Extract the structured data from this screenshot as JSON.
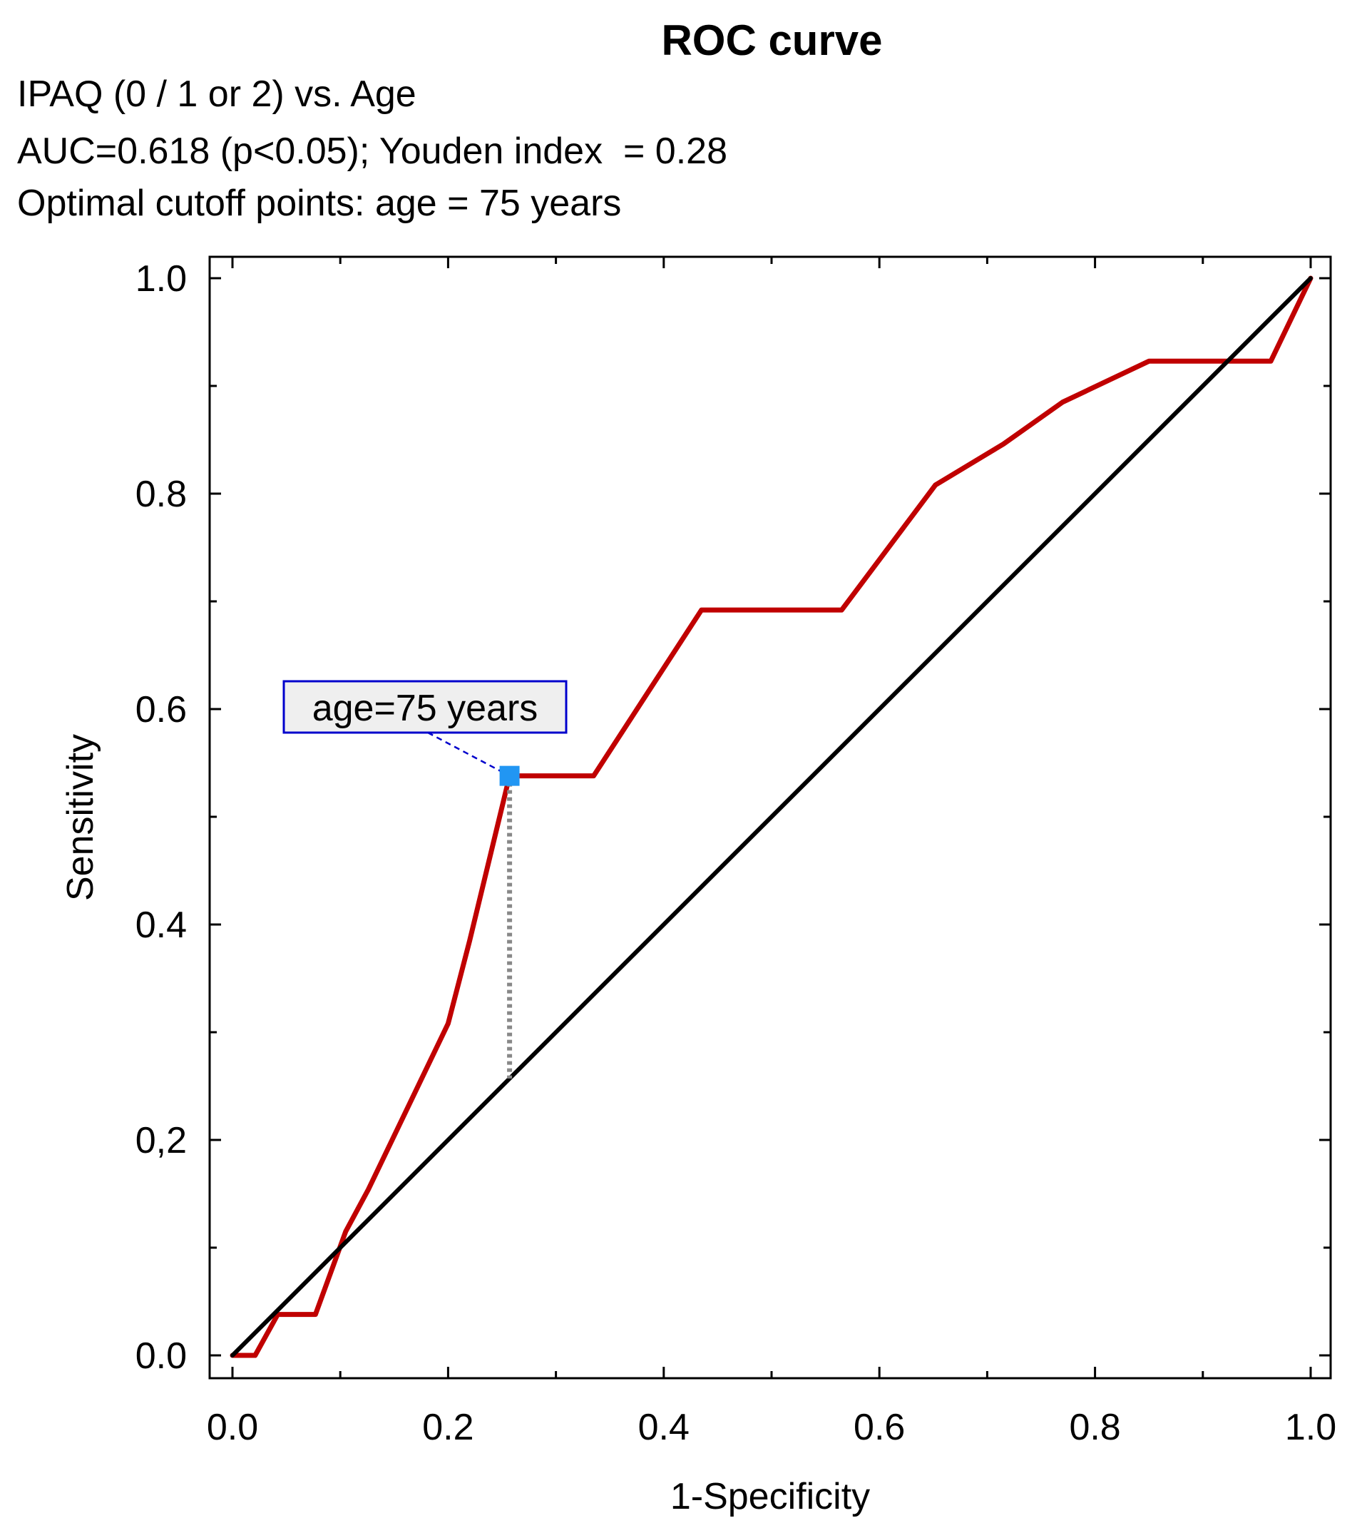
{
  "chart_data": {
    "type": "line",
    "title": "ROC curve",
    "subtitles": [
      "IPAQ (0 / 1 or 2) vs. Age",
      "AUC=0.618 (p<0.05); Youden index  = 0.28",
      "Optimal cutoff points: age = 75 years"
    ],
    "xlabel": "1-Specificity",
    "ylabel": "Sensitivity",
    "xlim": [
      0,
      1
    ],
    "ylim": [
      0,
      1
    ],
    "x_ticks": [
      {
        "value": 0.0,
        "label": "0.0"
      },
      {
        "value": 0.2,
        "label": "0.2"
      },
      {
        "value": 0.4,
        "label": "0.4"
      },
      {
        "value": 0.6,
        "label": "0.6"
      },
      {
        "value": 0.8,
        "label": "0.8"
      },
      {
        "value": 1.0,
        "label": "1.0"
      }
    ],
    "y_ticks": [
      {
        "value": 0.0,
        "label": "0.0"
      },
      {
        "value": 0.2,
        "label": "0,2"
      },
      {
        "value": 0.4,
        "label": "0.4"
      },
      {
        "value": 0.6,
        "label": "0.6"
      },
      {
        "value": 0.8,
        "label": "0.8"
      },
      {
        "value": 1.0,
        "label": "1.0"
      }
    ],
    "grid": false,
    "series": [
      {
        "color": "#c00000",
        "x": [
          0.0,
          0.021,
          0.042,
          0.077,
          0.105,
          0.126,
          0.2,
          0.22,
          0.257,
          0.335,
          0.435,
          0.565,
          0.652,
          0.715,
          0.77,
          0.85,
          0.963,
          1.0
        ],
        "y": [
          0.0,
          0.0,
          0.038,
          0.038,
          0.115,
          0.154,
          0.308,
          0.385,
          0.538,
          0.538,
          0.692,
          0.692,
          0.808,
          0.846,
          0.885,
          0.923,
          0.923,
          1.0
        ]
      },
      {
        "color": "#000000",
        "x": [
          0,
          1
        ],
        "y": [
          0,
          1
        ]
      }
    ],
    "cutoff_point": {
      "x": 0.257,
      "y": 0.538,
      "diagonal_y": 0.257,
      "label": "age=75 years",
      "marker_color": "#2196f3",
      "box_border_color": "#0000cc",
      "connector_color": "#888888"
    }
  }
}
